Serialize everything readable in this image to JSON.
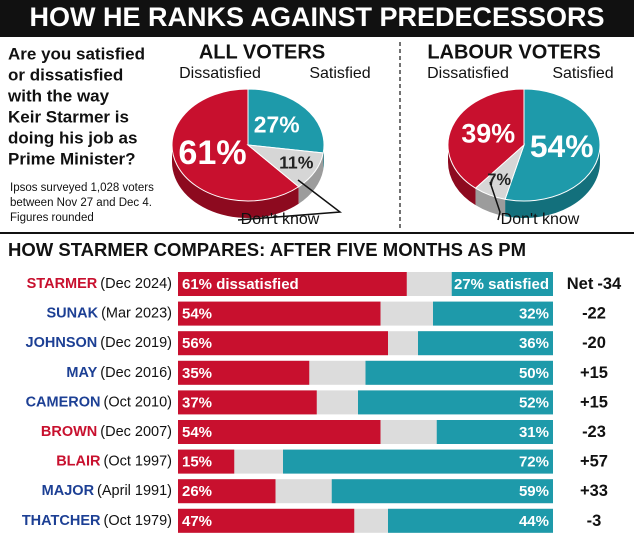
{
  "header": {
    "title": "HOW HE RANKS AGAINST PREDECESSORS"
  },
  "question": [
    "Are you satisfied",
    "or dissatisfied",
    "with the way",
    "Keir Starmer is",
    "doing his job as",
    "Prime Minister?"
  ],
  "note": [
    "Ipsos surveyed 1,028 voters",
    "between Nov 27 and Dec 4.",
    "Figures rounded"
  ],
  "chart_data": [
    {
      "type": "pie",
      "title": "ALL VOTERS",
      "categories": [
        "Dissatisfied",
        "Satisfied",
        "Don't know"
      ],
      "values": [
        61,
        27,
        11
      ],
      "value_labels": [
        "61%",
        "27%",
        "11%"
      ],
      "colors": [
        "#c8102e",
        "#1e9aaa",
        "#d6d6d6"
      ]
    },
    {
      "type": "pie",
      "title": "LABOUR VOTERS",
      "categories": [
        "Dissatisfied",
        "Satisfied",
        "Don't know"
      ],
      "values": [
        39,
        54,
        7
      ],
      "value_labels": [
        "39%",
        "54%",
        "7%"
      ],
      "colors": [
        "#c8102e",
        "#1e9aaa",
        "#d6d6d6"
      ]
    },
    {
      "type": "diverging",
      "title": "HOW STARMER COMPARES: AFTER FIVE MONTHS AS PM",
      "categories": [
        "STARMER",
        "SUNAK",
        "JOHNSON",
        "MAY",
        "CAMERON",
        "BROWN",
        "BLAIR",
        "MAJOR",
        "THATCHER"
      ],
      "dates": [
        "(Dec 2024)",
        "(Mar 2023)",
        "(Dec 2019)",
        "(Dec 2016)",
        "(Oct 2010)",
        "(Dec 2007)",
        "(Oct 1997)",
        "(April 1991)",
        "(Oct 1979)"
      ],
      "category_colors": [
        "#c8102e",
        "#1c3f94",
        "#1c3f94",
        "#1c3f94",
        "#1c3f94",
        "#c8102e",
        "#c8102e",
        "#1c3f94",
        "#1c3f94"
      ],
      "xlim": [
        0,
        100
      ],
      "background_color": "#dcdcdc",
      "series": [
        {
          "color": "#c8102e",
          "values": [
            61,
            54,
            56,
            35,
            37,
            54,
            15,
            26,
            47
          ],
          "value_labels": [
            "61% dissatisfied",
            "54%",
            "56%",
            "35%",
            "37%",
            "54%",
            "15%",
            "26%",
            "47%"
          ]
        },
        {
          "color": "#1e9aaa",
          "values": [
            27,
            32,
            36,
            50,
            52,
            31,
            72,
            59,
            44
          ],
          "value_labels": [
            "27% satisfied",
            "32%",
            "36%",
            "50%",
            "52%",
            "31%",
            "72%",
            "59%",
            "44%"
          ]
        }
      ],
      "net": {
        "label": "Net",
        "values": [
          -34,
          -22,
          -20,
          15,
          15,
          -23,
          57,
          33,
          -3
        ],
        "value_labels": [
          "-34",
          "-22",
          "-20",
          "+15",
          "+15",
          "-23",
          "+57",
          "+33",
          "-3"
        ]
      }
    }
  ]
}
